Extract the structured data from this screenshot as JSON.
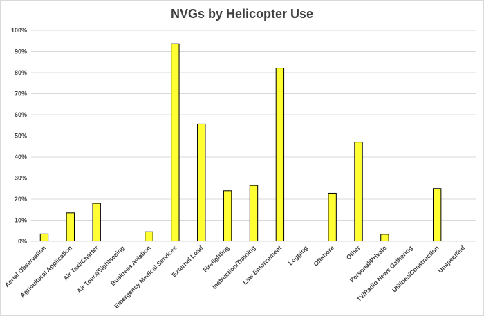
{
  "chart_data": {
    "type": "bar",
    "title": "NVGs by Helicopter Use",
    "xlabel": "",
    "ylabel": "",
    "categories": [
      "Aerial Observation",
      "Agricultural Application",
      "Air Taxi/Charter",
      "Air Tours/Sightseeing",
      "Business Aviation",
      "Emergency Medical Services",
      "External Load",
      "Firefighting",
      "Instruction/Training",
      "Law Enforcement",
      "Logging",
      "Offshore",
      "Other",
      "Personal/Private",
      "TV/Radio News Gathering",
      "Utilities/Construction",
      "Unspecified"
    ],
    "values": [
      3.5,
      13.5,
      18,
      0,
      4.5,
      93.7,
      55.6,
      24,
      26.5,
      82.1,
      0,
      22.8,
      47,
      3.3,
      0,
      25,
      0
    ],
    "ylim": [
      0,
      100
    ],
    "yticks": [
      "0%",
      "10%",
      "20%",
      "30%",
      "40%",
      "50%",
      "60%",
      "70%",
      "80%",
      "90%",
      "100%"
    ],
    "grid": true,
    "legend": "none",
    "bar_color": "#ffff33",
    "bar_edge_color": "#000000"
  }
}
